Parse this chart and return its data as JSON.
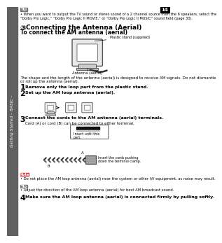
{
  "page_bg": "#ffffff",
  "sidebar_color": "#606060",
  "sidebar_text": "Getting Started – BASIC –",
  "tip_label": "Tip",
  "tip_text": "When you want to output the TV sound or stereo sound of a 2 channel source from the 6 speakers, select the “Dolby Pro Logic,” “Dolby Pro Logic II MOVIE,” or “Dolby Pro Logic II MUSIC” sound field (page 30).",
  "section_title": "Connecting the Antenna (Aerial)",
  "subsection_title": "To connect the AM antenna (aerial)",
  "plastic_stand_label": "Plastic stand (supplied)",
  "antenna_label": "Antenna (aerial)",
  "body_text": "The shape and the length of the antenna (aerial) is designed to receive AM signals. Do not dismantle\nor roll up the antenna (aerial).",
  "step1_text": "Remove only the loop part from the plastic stand.",
  "step2_text": "Set up the AM loop antenna (aerial).",
  "step3_title": "Connect the cords to the AM antenna (aerial) terminals.",
  "step3_body": "Cord (A) or cord (B) can be connected to either terminal.",
  "insert_label": "Insert until this\npart.",
  "insert_cords_label": "Insert the cords pushing\ndown the terminal clamp.",
  "note_label": "Note",
  "note_text": "Do not place the AM loop antenna (aerial) near the system or other AV equipment, as noise may result.",
  "tip2_label": "Tip",
  "tip2_text": "Adjust the direction of the AM loop antenna (aerial) for best AM broadcast sound.",
  "step4_text": "Make sure the AM loop antenna (aerial) is connected firmly by pulling softly.",
  "text_color": "#000000",
  "light_gray": "#e8e8e8",
  "mid_gray": "#999999",
  "dark_gray": "#444444"
}
